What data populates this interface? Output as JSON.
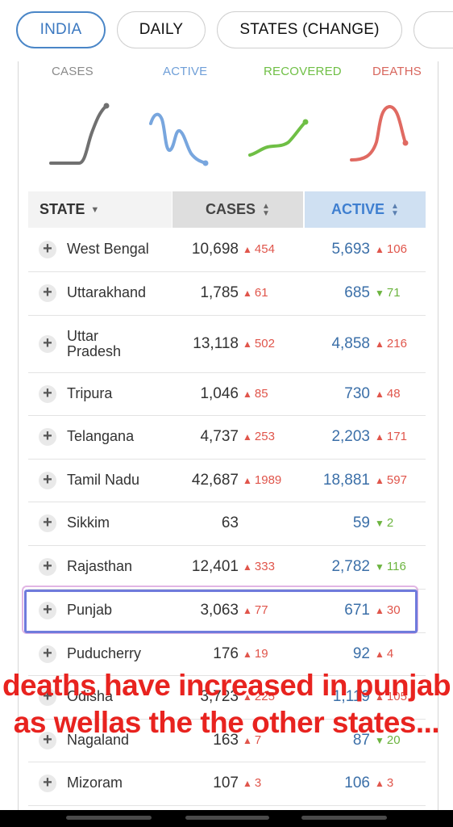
{
  "tabs": [
    "INDIA",
    "DAILY",
    "STATES (CHANGE)"
  ],
  "stats": {
    "cases_label": "CASES",
    "active_label": "ACTIVE",
    "recovered_label": "RECOVERED",
    "deaths_label": "DEATHS",
    "colors": {
      "cases": "#777777",
      "active": "#78a6de",
      "recovered": "#6fbf45",
      "deaths": "#e06a62"
    }
  },
  "table": {
    "headers": {
      "state": "STATE",
      "cases": "CASES",
      "active": "ACTIVE"
    },
    "rows": [
      {
        "state": "West Bengal",
        "cases": "10,698",
        "cases_delta": "454",
        "active": "5,693",
        "active_delta": "106",
        "active_dir": "up"
      },
      {
        "state": "Uttarakhand",
        "cases": "1,785",
        "cases_delta": "61",
        "active": "685",
        "active_delta": "71",
        "active_dir": "down"
      },
      {
        "state": "Uttar Pradesh",
        "cases": "13,118",
        "cases_delta": "502",
        "active": "4,858",
        "active_delta": "216",
        "active_dir": "up"
      },
      {
        "state": "Tripura",
        "cases": "1,046",
        "cases_delta": "85",
        "active": "730",
        "active_delta": "48",
        "active_dir": "up"
      },
      {
        "state": "Telangana",
        "cases": "4,737",
        "cases_delta": "253",
        "active": "2,203",
        "active_delta": "171",
        "active_dir": "up"
      },
      {
        "state": "Tamil Nadu",
        "cases": "42,687",
        "cases_delta": "1989",
        "active": "18,881",
        "active_delta": "597",
        "active_dir": "up"
      },
      {
        "state": "Sikkim",
        "cases": "63",
        "cases_delta": "",
        "active": "59",
        "active_delta": "2",
        "active_dir": "down"
      },
      {
        "state": "Rajasthan",
        "cases": "12,401",
        "cases_delta": "333",
        "active": "2,782",
        "active_delta": "116",
        "active_dir": "down"
      },
      {
        "state": "Punjab",
        "cases": "3,063",
        "cases_delta": "77",
        "active": "671",
        "active_delta": "30",
        "active_dir": "up"
      },
      {
        "state": "Puducherry",
        "cases": "176",
        "cases_delta": "19",
        "active": "92",
        "active_delta": "4",
        "active_dir": "up"
      },
      {
        "state": "Odisha",
        "cases": "3,723",
        "cases_delta": "225",
        "active": "1,119",
        "active_delta": "105",
        "active_dir": "up"
      },
      {
        "state": "Nagaland",
        "cases": "163",
        "cases_delta": "7",
        "active": "87",
        "active_delta": "20",
        "active_dir": "down"
      },
      {
        "state": "Mizoram",
        "cases": "107",
        "cases_delta": "3",
        "active": "106",
        "active_delta": "3",
        "active_dir": "up"
      }
    ]
  },
  "caption": "deaths have increased in punjab as wellas the the other states..."
}
